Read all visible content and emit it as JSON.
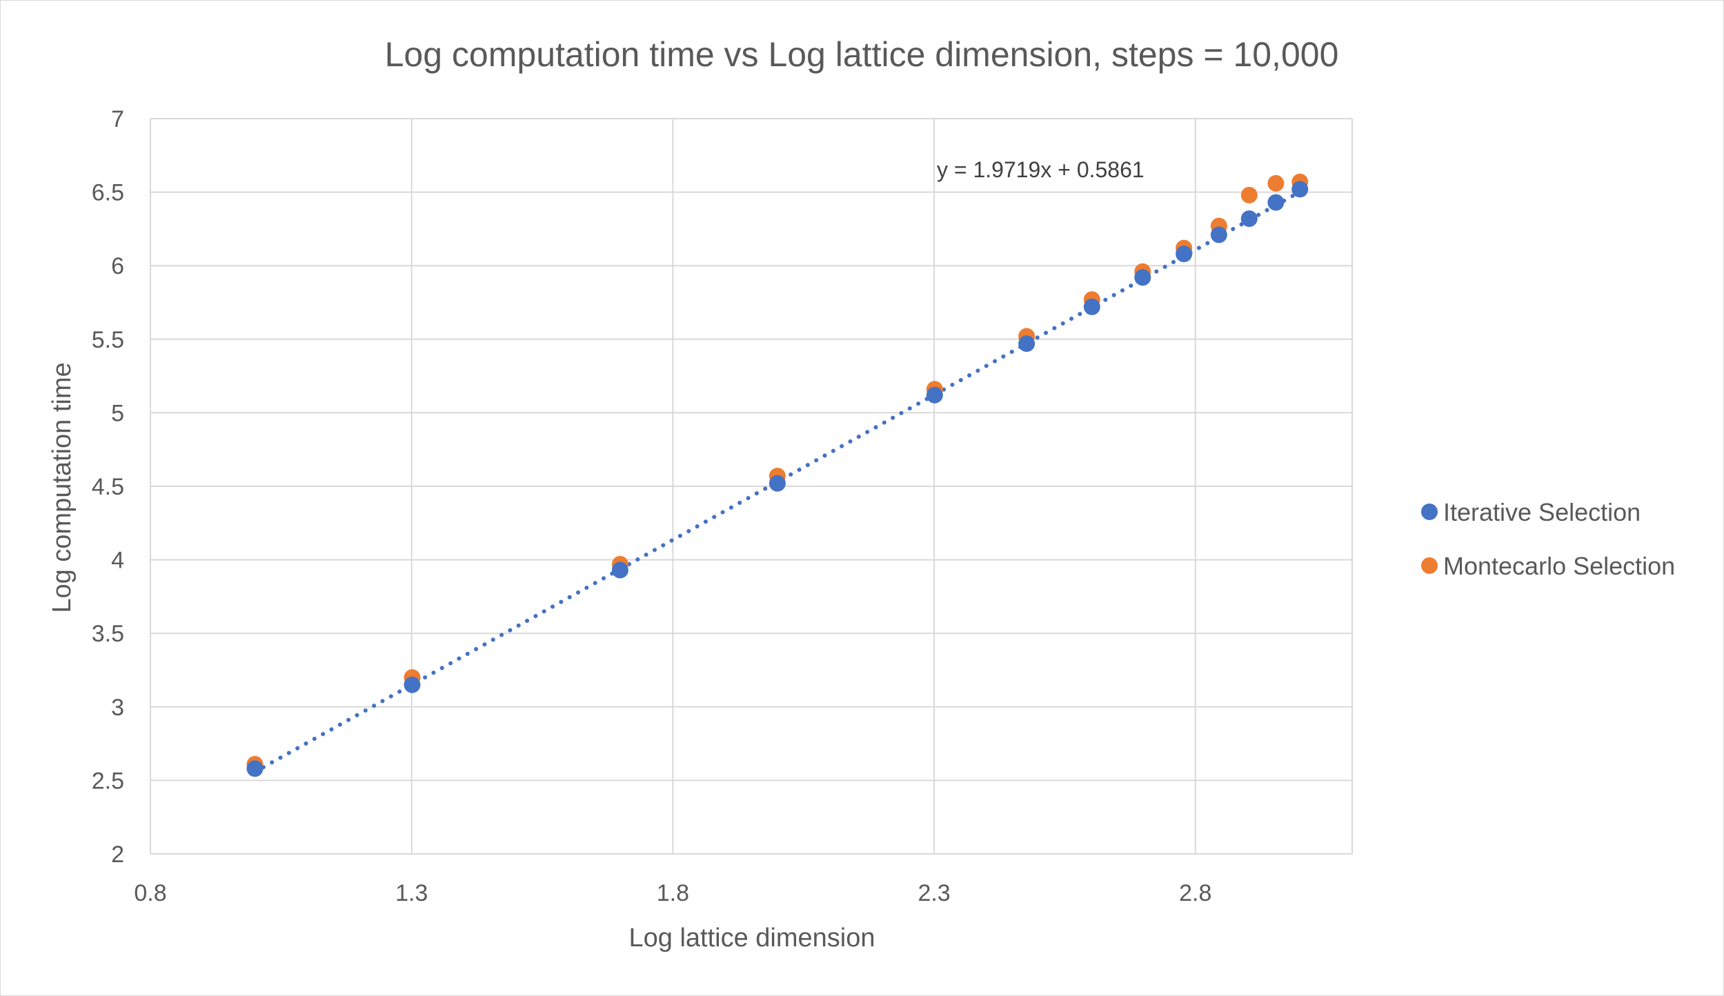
{
  "chart_data": {
    "type": "scatter",
    "title": "Log computation time vs Log lattice dimension, steps = 10,000",
    "xlabel": "Log lattice dimension",
    "ylabel": "Log computation time",
    "xlim": [
      0.8,
      3.1
    ],
    "ylim": [
      2,
      7
    ],
    "x_ticks": [
      0.8,
      1.3,
      1.8,
      2.3,
      2.8
    ],
    "x_tick_labels": [
      "0.8",
      "1.3",
      "1.8",
      "2.3",
      "2.8"
    ],
    "y_ticks": [
      2,
      2.5,
      3,
      3.5,
      4,
      4.5,
      5,
      5.5,
      6,
      6.5,
      7
    ],
    "y_tick_labels": [
      "2",
      "2.5",
      "3",
      "3.5",
      "4",
      "4.5",
      "5",
      "5.5",
      "6",
      "6.5",
      "7"
    ],
    "grid": true,
    "legend_position": "right",
    "series": [
      {
        "name": "Iterative Selection",
        "color": "#4472c4",
        "x": [
          1.0,
          1.301,
          1.699,
          2.0,
          2.301,
          2.477,
          2.602,
          2.699,
          2.778,
          2.845,
          2.903,
          2.954,
          3.0
        ],
        "y": [
          2.58,
          3.15,
          3.93,
          4.52,
          5.12,
          5.47,
          5.72,
          5.92,
          6.08,
          6.21,
          6.32,
          6.43,
          6.52
        ]
      },
      {
        "name": "Montecarlo Selection",
        "color": "#ed7d31",
        "x": [
          1.0,
          1.301,
          1.699,
          2.0,
          2.301,
          2.477,
          2.602,
          2.699,
          2.778,
          2.845,
          2.903,
          2.954,
          3.0
        ],
        "y": [
          2.61,
          3.2,
          3.97,
          4.57,
          5.16,
          5.52,
          5.77,
          5.96,
          6.12,
          6.27,
          6.48,
          6.56,
          6.57
        ]
      }
    ],
    "trendline": {
      "series": "Iterative Selection",
      "style": "dotted",
      "color": "#4472c4",
      "slope": 1.9719,
      "intercept": 0.5861,
      "x_range": [
        1.0,
        3.0
      ],
      "equation_label": "y = 1.9719x + 0.5861"
    }
  }
}
